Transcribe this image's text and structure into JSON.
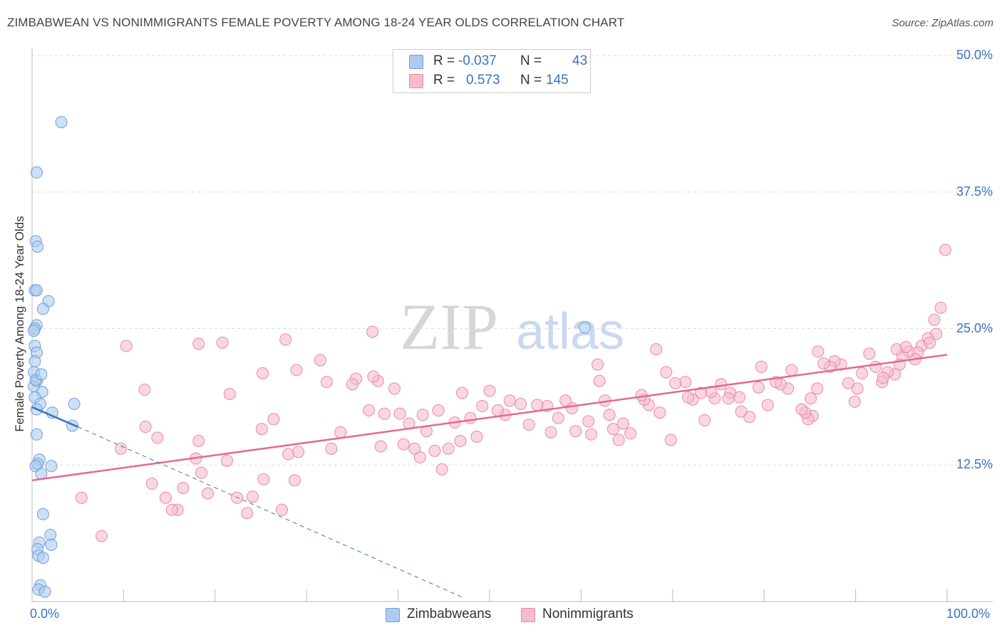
{
  "title": "ZIMBABWEAN VS NONIMMIGRANTS FEMALE POVERTY AMONG 18-24 YEAR OLDS CORRELATION CHART",
  "source": "Source: ZipAtlas.com",
  "watermark": {
    "zip": "ZIP",
    "atlas": "atlas"
  },
  "colors": {
    "blue_fill": "#aecbef",
    "blue_stroke": "#6f9fdc",
    "blue_line": "#3b72c4",
    "pink_fill": "#f6bccb",
    "pink_stroke": "#e88aa4",
    "pink_line": "#e26a90",
    "label_blue": "#3b72c4",
    "grid": "#dddddd"
  },
  "legend": {
    "rows": [
      {
        "r_label": "R =",
        "r_value": "-0.037",
        "n_label": "N =",
        "n_value": "43"
      },
      {
        "r_label": "R =",
        "r_value": "0.573",
        "n_label": "N =",
        "n_value": "145"
      }
    ]
  },
  "bottom_legend": {
    "zimbabweans": "Zimbabweans",
    "nonimmigrants": "Nonimmigrants"
  },
  "chart_data": {
    "type": "scatter",
    "title": "ZIMBABWEAN VS NONIMMIGRANTS FEMALE POVERTY AMONG 18-24 YEAR OLDS CORRELATION CHART",
    "xlabel": "",
    "ylabel": "Female Poverty Among 18-24 Year Olds",
    "xlim": [
      0,
      100
    ],
    "ylim": [
      0,
      50
    ],
    "x_tick_labels": [
      "0.0%",
      "100.0%"
    ],
    "y_tick_labels": [
      "12.5%",
      "25.0%",
      "37.5%",
      "50.0%"
    ],
    "y_ticks": [
      12.5,
      25.0,
      37.5,
      50.0
    ],
    "grid": true,
    "legend_position": "top-center",
    "series": [
      {
        "name": "Zimbabweans",
        "r": -0.037,
        "n": 43,
        "trend_solid": [
          [
            0,
            17.8
          ],
          [
            5,
            16.0
          ]
        ],
        "trend_dashed": [
          [
            5,
            16.0
          ],
          [
            47,
            0.4
          ]
        ],
        "points": [
          [
            3.2,
            43.9
          ],
          [
            0.5,
            39.3
          ],
          [
            0.4,
            33.0
          ],
          [
            0.6,
            32.5
          ],
          [
            0.3,
            28.5
          ],
          [
            0.5,
            28.5
          ],
          [
            1.8,
            27.5
          ],
          [
            1.2,
            26.8
          ],
          [
            0.5,
            25.3
          ],
          [
            0.3,
            25.0
          ],
          [
            0.2,
            24.8
          ],
          [
            0.3,
            23.4
          ],
          [
            0.5,
            22.8
          ],
          [
            0.2,
            21.0
          ],
          [
            0.5,
            20.2
          ],
          [
            0.2,
            19.7
          ],
          [
            1.1,
            19.2
          ],
          [
            0.3,
            18.7
          ],
          [
            0.9,
            18.1
          ],
          [
            4.6,
            18.1
          ],
          [
            0.5,
            17.6
          ],
          [
            2.2,
            17.3
          ],
          [
            4.4,
            16.1
          ],
          [
            0.5,
            15.3
          ],
          [
            0.8,
            13.0
          ],
          [
            0.6,
            12.6
          ],
          [
            2.1,
            12.4
          ],
          [
            0.4,
            12.4
          ],
          [
            1.0,
            11.7
          ],
          [
            1.2,
            8.0
          ],
          [
            2.0,
            6.1
          ],
          [
            0.8,
            5.4
          ],
          [
            2.1,
            5.2
          ],
          [
            0.6,
            4.8
          ],
          [
            0.7,
            4.2
          ],
          [
            1.2,
            4.0
          ],
          [
            0.9,
            1.5
          ],
          [
            0.7,
            1.1
          ],
          [
            1.4,
            0.9
          ],
          [
            60.4,
            25.1
          ],
          [
            0.3,
            22.0
          ],
          [
            0.4,
            20.3
          ],
          [
            1.0,
            20.8
          ]
        ]
      },
      {
        "name": "Nonimmigrants",
        "r": 0.573,
        "n": 145,
        "trend_solid": [
          [
            0,
            11.1
          ],
          [
            100,
            22.6
          ]
        ],
        "points": [
          [
            99.8,
            32.2
          ],
          [
            99.3,
            26.9
          ],
          [
            98.6,
            25.8
          ],
          [
            98.8,
            24.5
          ],
          [
            97.9,
            24.1
          ],
          [
            97.2,
            23.4
          ],
          [
            98.1,
            23.7
          ],
          [
            96.8,
            22.8
          ],
          [
            96.5,
            22.2
          ],
          [
            95.8,
            22.9
          ],
          [
            95.1,
            22.5
          ],
          [
            94.8,
            21.7
          ],
          [
            94.5,
            23.1
          ],
          [
            95.5,
            23.3
          ],
          [
            94.3,
            20.8
          ],
          [
            93.5,
            21.0
          ],
          [
            92.9,
            20.1
          ],
          [
            93.0,
            20.5
          ],
          [
            92.2,
            21.5
          ],
          [
            91.5,
            22.7
          ],
          [
            90.7,
            20.9
          ],
          [
            90.2,
            19.5
          ],
          [
            89.9,
            18.3
          ],
          [
            89.2,
            20.0
          ],
          [
            88.4,
            21.7
          ],
          [
            87.7,
            22.0
          ],
          [
            87.2,
            21.5
          ],
          [
            86.5,
            21.8
          ],
          [
            85.9,
            22.9
          ],
          [
            85.3,
            17.0
          ],
          [
            84.8,
            16.7
          ],
          [
            84.5,
            17.3
          ],
          [
            84.1,
            17.6
          ],
          [
            85.1,
            18.6
          ],
          [
            85.8,
            19.5
          ],
          [
            83.0,
            21.2
          ],
          [
            82.6,
            19.5
          ],
          [
            81.8,
            19.9
          ],
          [
            81.3,
            20.1
          ],
          [
            80.4,
            18.0
          ],
          [
            79.7,
            21.5
          ],
          [
            79.4,
            19.6
          ],
          [
            78.4,
            16.9
          ],
          [
            77.5,
            17.4
          ],
          [
            77.3,
            18.7
          ],
          [
            76.3,
            19.1
          ],
          [
            76.1,
            18.6
          ],
          [
            75.3,
            19.9
          ],
          [
            74.6,
            18.6
          ],
          [
            74.2,
            19.2
          ],
          [
            73.5,
            16.6
          ],
          [
            73.1,
            19.1
          ],
          [
            72.2,
            18.5
          ],
          [
            71.7,
            18.7
          ],
          [
            71.4,
            20.1
          ],
          [
            70.3,
            20.0
          ],
          [
            69.8,
            14.8
          ],
          [
            69.3,
            21.0
          ],
          [
            68.6,
            17.3
          ],
          [
            68.2,
            23.1
          ],
          [
            67.4,
            18.0
          ],
          [
            66.9,
            18.5
          ],
          [
            66.6,
            18.9
          ],
          [
            65.4,
            15.4
          ],
          [
            64.6,
            16.3
          ],
          [
            64.1,
            14.8
          ],
          [
            63.5,
            15.8
          ],
          [
            63.1,
            17.1
          ],
          [
            62.6,
            18.4
          ],
          [
            62.0,
            20.2
          ],
          [
            61.8,
            21.7
          ],
          [
            61.1,
            15.3
          ],
          [
            60.8,
            16.5
          ],
          [
            59.4,
            15.6
          ],
          [
            59.0,
            17.7
          ],
          [
            58.3,
            18.4
          ],
          [
            57.5,
            16.8
          ],
          [
            56.7,
            15.5
          ],
          [
            56.3,
            17.9
          ],
          [
            55.2,
            18.0
          ],
          [
            54.3,
            16.2
          ],
          [
            53.4,
            18.1
          ],
          [
            52.2,
            18.4
          ],
          [
            51.7,
            17.1
          ],
          [
            50.9,
            17.5
          ],
          [
            50.0,
            19.3
          ],
          [
            49.2,
            17.9
          ],
          [
            48.6,
            15.1
          ],
          [
            47.9,
            16.8
          ],
          [
            47.0,
            19.1
          ],
          [
            46.8,
            14.7
          ],
          [
            46.2,
            16.4
          ],
          [
            45.5,
            14.0
          ],
          [
            44.8,
            12.1
          ],
          [
            44.4,
            17.5
          ],
          [
            44.0,
            13.8
          ],
          [
            43.1,
            15.6
          ],
          [
            42.7,
            17.1
          ],
          [
            42.4,
            13.2
          ],
          [
            41.8,
            14.0
          ],
          [
            41.2,
            16.3
          ],
          [
            40.6,
            14.4
          ],
          [
            40.2,
            17.2
          ],
          [
            39.6,
            19.5
          ],
          [
            38.5,
            17.2
          ],
          [
            38.1,
            14.2
          ],
          [
            37.8,
            20.2
          ],
          [
            37.3,
            20.6
          ],
          [
            36.8,
            17.5
          ],
          [
            37.2,
            24.7
          ],
          [
            35.4,
            20.4
          ],
          [
            35.0,
            19.9
          ],
          [
            33.7,
            15.5
          ],
          [
            32.7,
            14.0
          ],
          [
            32.2,
            20.1
          ],
          [
            31.5,
            22.1
          ],
          [
            29.1,
            13.7
          ],
          [
            28.7,
            11.1
          ],
          [
            28.0,
            13.5
          ],
          [
            28.9,
            21.2
          ],
          [
            27.7,
            24.0
          ],
          [
            26.4,
            16.7
          ],
          [
            25.3,
            11.2
          ],
          [
            25.1,
            15.8
          ],
          [
            25.2,
            20.9
          ],
          [
            24.1,
            9.6
          ],
          [
            23.5,
            8.1
          ],
          [
            22.4,
            9.5
          ],
          [
            21.6,
            19.0
          ],
          [
            21.3,
            12.9
          ],
          [
            20.8,
            23.7
          ],
          [
            19.2,
            9.9
          ],
          [
            18.2,
            14.7
          ],
          [
            18.5,
            11.8
          ],
          [
            18.2,
            23.6
          ],
          [
            17.9,
            13.1
          ],
          [
            16.5,
            10.4
          ],
          [
            15.9,
            8.4
          ],
          [
            15.3,
            8.4
          ],
          [
            14.6,
            9.5
          ],
          [
            13.7,
            15.0
          ],
          [
            13.1,
            10.8
          ],
          [
            12.4,
            16.0
          ],
          [
            12.3,
            19.4
          ],
          [
            10.3,
            23.4
          ],
          [
            9.7,
            14.0
          ],
          [
            7.6,
            6.0
          ],
          [
            5.4,
            9.5
          ],
          [
            27.3,
            8.4
          ]
        ]
      }
    ]
  }
}
